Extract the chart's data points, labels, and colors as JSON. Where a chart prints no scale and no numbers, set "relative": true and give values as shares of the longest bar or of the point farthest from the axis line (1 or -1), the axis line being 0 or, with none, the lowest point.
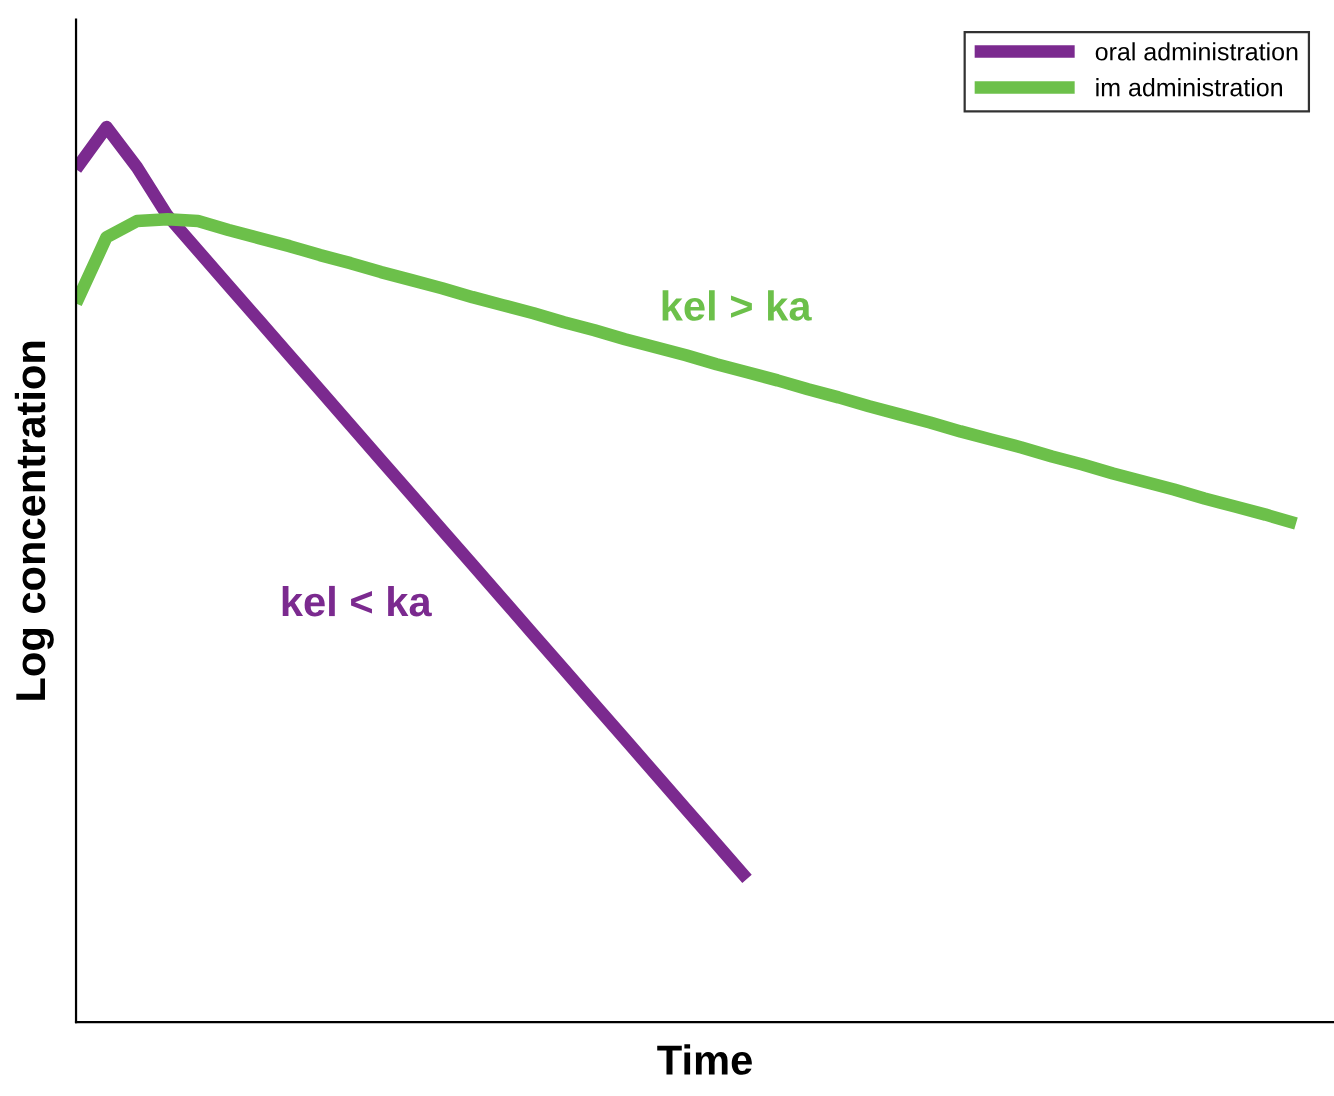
{
  "chart_data": {
    "type": "line",
    "relative": true,
    "xlabel": "Time",
    "ylabel": "Log concentration",
    "categories": [
      null,
      null,
      null,
      null,
      null,
      null,
      null,
      null,
      null,
      null,
      null,
      null,
      null,
      null,
      null,
      null,
      null,
      null,
      null,
      null,
      null,
      null,
      null,
      null,
      null,
      null,
      null,
      null,
      null,
      null,
      null,
      null,
      null,
      null,
      null,
      null,
      null,
      null,
      null,
      null,
      null
    ],
    "series": [
      {
        "name": "oral administration",
        "color": "#7b2a8f",
        "values": [
          0.953,
          1.0,
          0.955,
          0.901,
          0.862,
          0.823,
          0.784,
          0.745,
          0.706,
          0.667,
          0.628,
          0.589,
          0.55,
          0.511,
          0.472,
          0.433,
          0.394,
          0.355,
          0.316,
          0.277,
          0.238,
          0.199,
          0.16,
          null,
          null,
          null,
          null,
          null,
          null,
          null,
          null,
          null,
          null,
          null,
          null,
          null,
          null,
          null,
          null,
          null,
          null
        ]
      },
      {
        "name": "im administration",
        "color": "#6cc04a",
        "values": [
          0.803,
          0.877,
          0.895,
          0.897,
          0.895,
          0.885,
          0.876,
          0.867,
          0.857,
          0.848,
          0.838,
          0.829,
          0.82,
          0.81,
          0.801,
          0.792,
          0.782,
          0.773,
          0.763,
          0.754,
          0.745,
          0.735,
          0.726,
          0.717,
          0.707,
          0.698,
          0.688,
          0.679,
          0.67,
          0.66,
          0.651,
          0.642,
          0.632,
          0.623,
          0.613,
          0.604,
          0.595,
          0.585,
          0.576,
          0.567,
          0.557
        ]
      }
    ],
    "annotations": [
      "kel > ka",
      "kel < ka"
    ],
    "legend": "top right",
    "marker": "none",
    "line_style": "solid"
  }
}
